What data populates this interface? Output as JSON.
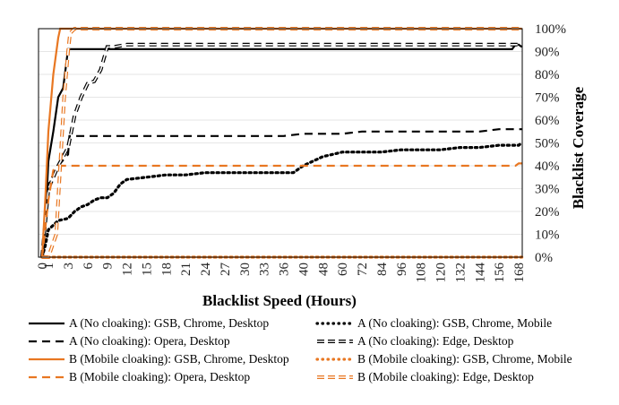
{
  "chart_data": {
    "type": "line",
    "xlabel": "Blacklist Speed (Hours)",
    "ylabel": "Blacklist Coverage",
    "xlim": [
      0,
      170
    ],
    "ylim": [
      0,
      100
    ],
    "x_ticks": [
      0,
      1,
      3,
      6,
      9,
      12,
      15,
      18,
      21,
      24,
      27,
      30,
      33,
      36,
      40,
      48,
      60,
      72,
      84,
      96,
      108,
      120,
      132,
      144,
      156,
      168
    ],
    "x_tick_labels": [
      "0",
      "1",
      "3",
      "6",
      "9",
      "12",
      "15",
      "18",
      "21",
      "24",
      "27",
      "30",
      "33",
      "36",
      "40",
      "48",
      "60",
      "72",
      "84",
      "96",
      "108",
      "120",
      "132",
      "144",
      "156",
      "168"
    ],
    "y_ticks": [
      0,
      10,
      20,
      30,
      40,
      50,
      60,
      70,
      80,
      90,
      100
    ],
    "y_tick_labels": [
      "0%",
      "10%",
      "20%",
      "30%",
      "40%",
      "50%",
      "60%",
      "70%",
      "80%",
      "90%",
      "100%"
    ],
    "grid": true,
    "legend_position": "bottom",
    "series": [
      {
        "name": "A (No cloaking): GSB, Chrome, Desktop",
        "color": "#000000",
        "style": "solid",
        "x": [
          0,
          0.3,
          0.6,
          1,
          1.5,
          2,
          2.5,
          3,
          4,
          6,
          9,
          12,
          30,
          60,
          90,
          120,
          150,
          164,
          166,
          168,
          170
        ],
        "y": [
          0,
          5,
          20,
          42,
          55,
          70,
          74,
          91,
          91,
          91,
          91,
          91,
          91,
          91,
          91,
          91,
          91,
          91,
          93,
          93,
          92
        ]
      },
      {
        "name": "A (No cloaking): GSB, Chrome, Mobile",
        "color": "#000000",
        "style": "dotted",
        "x": [
          0,
          0.5,
          1,
          2,
          3,
          4,
          5,
          6,
          7,
          8,
          9,
          10,
          11,
          12,
          15,
          18,
          21,
          24,
          27,
          30,
          33,
          36,
          38,
          40,
          44,
          48,
          54,
          60,
          72,
          84,
          96,
          108,
          120,
          132,
          144,
          156,
          168,
          170
        ],
        "y": [
          0,
          5,
          12,
          16,
          17,
          20,
          22,
          23,
          25,
          26,
          26,
          28,
          32,
          34,
          35,
          36,
          36,
          37,
          37,
          37,
          37,
          37,
          37,
          40,
          42,
          44,
          45,
          46,
          46,
          46,
          47,
          47,
          47,
          48,
          48,
          49,
          49,
          50
        ]
      },
      {
        "name": "A (No cloaking): Opera, Desktop",
        "color": "#000000",
        "style": "dashed",
        "x": [
          0,
          1,
          2,
          3,
          3.2,
          6,
          12,
          24,
          36,
          40,
          60,
          72,
          96,
          120,
          144,
          156,
          168,
          170
        ],
        "y": [
          0,
          32,
          40,
          45,
          53,
          53,
          53,
          53,
          53,
          54,
          54,
          55,
          55,
          55,
          55,
          56,
          56,
          56
        ]
      },
      {
        "name": "A (No cloaking): Edge, Desktop",
        "color": "#000000",
        "style": "double-dashed",
        "x": [
          0,
          1,
          2,
          3,
          4,
          5,
          6,
          7,
          8,
          9,
          10,
          12,
          18,
          30,
          60,
          90,
          120,
          150,
          168,
          170
        ],
        "y": [
          0,
          30,
          40,
          48,
          62,
          70,
          76,
          77,
          82,
          92,
          92,
          93,
          93,
          93,
          93,
          93,
          93,
          93,
          93,
          93
        ]
      },
      {
        "name": "B (Mobile cloaking): GSB, Chrome, Desktop",
        "color": "#E87722",
        "style": "solid",
        "x": [
          0,
          0.5,
          1,
          1.5,
          2,
          2.2,
          3,
          60,
          120,
          170
        ],
        "y": [
          0,
          25,
          55,
          80,
          96,
          100,
          100,
          100,
          100,
          100
        ]
      },
      {
        "name": "B (Mobile cloaking): GSB, Chrome, Mobile",
        "color": "#E87722",
        "style": "dotted",
        "x": [
          0,
          170
        ],
        "y": [
          0,
          0
        ]
      },
      {
        "name": "B (Mobile cloaking): Opera, Desktop",
        "color": "#E87722",
        "style": "dashed",
        "x": [
          0,
          1,
          1.5,
          2,
          3,
          12,
          36,
          72,
          120,
          156,
          166,
          168,
          170
        ],
        "y": [
          0,
          25,
          38,
          40,
          40,
          40,
          40,
          40,
          40,
          40,
          40,
          41,
          41
        ]
      },
      {
        "name": "B (Mobile cloaking): Edge, Desktop",
        "color": "#E87722",
        "style": "double-dashed",
        "x": [
          0,
          1,
          1.8,
          2.2,
          2.6,
          3,
          3.3,
          4,
          12,
          60,
          120,
          170
        ],
        "y": [
          0,
          0,
          10,
          40,
          70,
          90,
          98,
          100,
          100,
          100,
          100,
          100
        ]
      }
    ]
  }
}
